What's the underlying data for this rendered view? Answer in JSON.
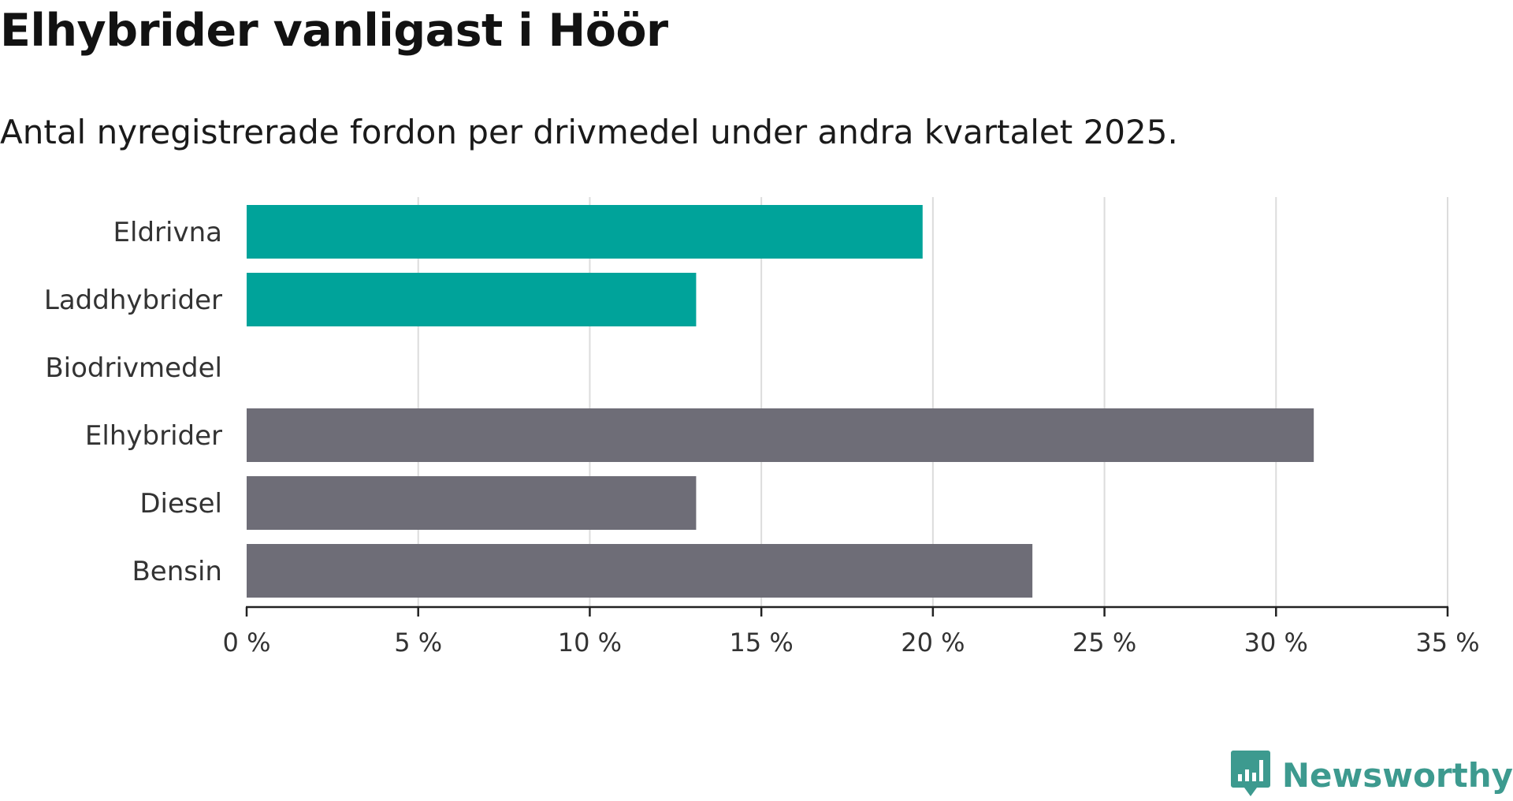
{
  "header": {
    "title": "Elhybrider vanligast i Höör",
    "subtitle": "Antal nyregistrerade fordon per drivmedel under andra kvartalet 2025."
  },
  "brand": {
    "name": "Newsworthy",
    "icon": "newsworthy-logo-icon",
    "color": "#3d9a8f"
  },
  "chart_data": {
    "type": "bar",
    "orientation": "horizontal",
    "categories": [
      "Eldrivna",
      "Laddhybrider",
      "Biodrivmedel",
      "Elhybrider",
      "Diesel",
      "Bensin"
    ],
    "values": [
      19.7,
      13.1,
      0,
      31.1,
      13.1,
      22.9
    ],
    "colors": [
      "#00a39a",
      "#00a39a",
      "#00a39a",
      "#6e6d77",
      "#6e6d77",
      "#6e6d77"
    ],
    "xlim": [
      0,
      35
    ],
    "ticks": [
      0,
      5,
      10,
      15,
      20,
      25,
      30,
      35
    ],
    "tick_labels": [
      "0 %",
      "5 %",
      "10 %",
      "15 %",
      "20 %",
      "25 %",
      "30 %",
      "35 %"
    ],
    "grid": true,
    "xlabel": "",
    "ylabel": ""
  }
}
